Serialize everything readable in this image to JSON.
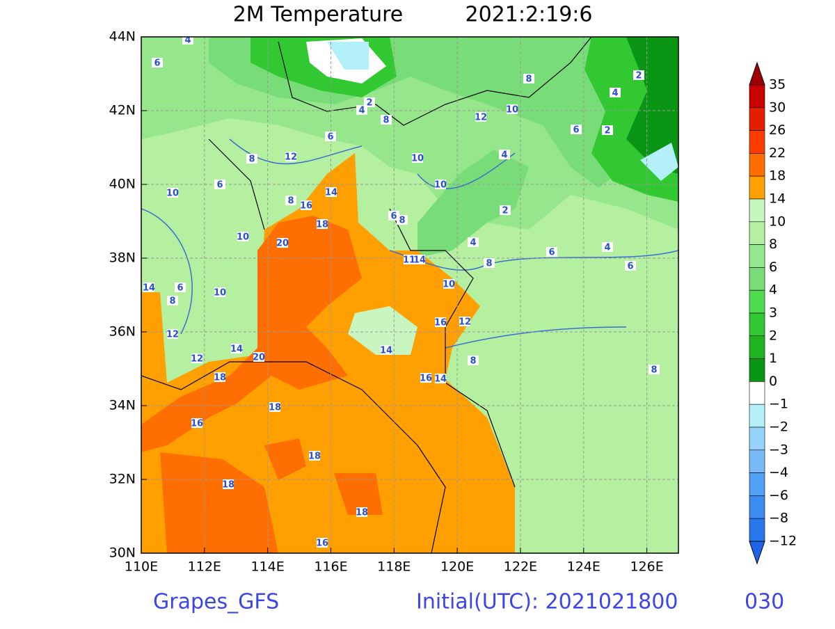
{
  "title": {
    "field": "2M Temperature",
    "time": "2021:2:19:6"
  },
  "map": {
    "lon_ticks": [
      "110E",
      "112E",
      "114E",
      "116E",
      "118E",
      "120E",
      "122E",
      "124E",
      "126E"
    ],
    "lat_ticks": [
      "30N",
      "32N",
      "34N",
      "36N",
      "38N",
      "40N",
      "42N",
      "44N"
    ],
    "contour_labels": [
      "4",
      "6",
      "2",
      "4",
      "8",
      "6",
      "12",
      "8",
      "6",
      "10",
      "10",
      "8",
      "16",
      "14",
      "18",
      "20",
      "10",
      "10",
      "12",
      "10",
      "8",
      "6",
      "4",
      "2",
      "2",
      "4",
      "2",
      "4",
      "6",
      "6",
      "4",
      "8",
      "10",
      "8",
      "6",
      "16",
      "12",
      "14",
      "8",
      "8",
      "16",
      "14",
      "14",
      "6",
      "8",
      "10",
      "12",
      "12",
      "14",
      "20",
      "18",
      "18",
      "16",
      "18",
      "18",
      "18",
      "16",
      "11",
      "14"
    ]
  },
  "colorbar": {
    "labels": [
      "35",
      "30",
      "26",
      "22",
      "18",
      "14",
      "10",
      "8",
      "6",
      "4",
      "3",
      "2",
      "1",
      "0",
      "−1",
      "−2",
      "−3",
      "−4",
      "−6",
      "−8",
      "−12"
    ],
    "colors": [
      "#a00000",
      "#c80000",
      "#e61e00",
      "#ff3c00",
      "#ff6e00",
      "#ffa000",
      "#c8f5c0",
      "#b4f0a0",
      "#96e68c",
      "#78dc78",
      "#50dc50",
      "#32c832",
      "#1eb41e",
      "#0a9614",
      "#ffffff",
      "#b4f0fa",
      "#96d2fa",
      "#78b9fa",
      "#50a0f5",
      "#3c8cf0",
      "#2878eb",
      "#1e64e6"
    ]
  },
  "footer": {
    "model": "Grapes_GFS",
    "initial": "Initial(UTC): 2021021800",
    "lead": "030"
  }
}
